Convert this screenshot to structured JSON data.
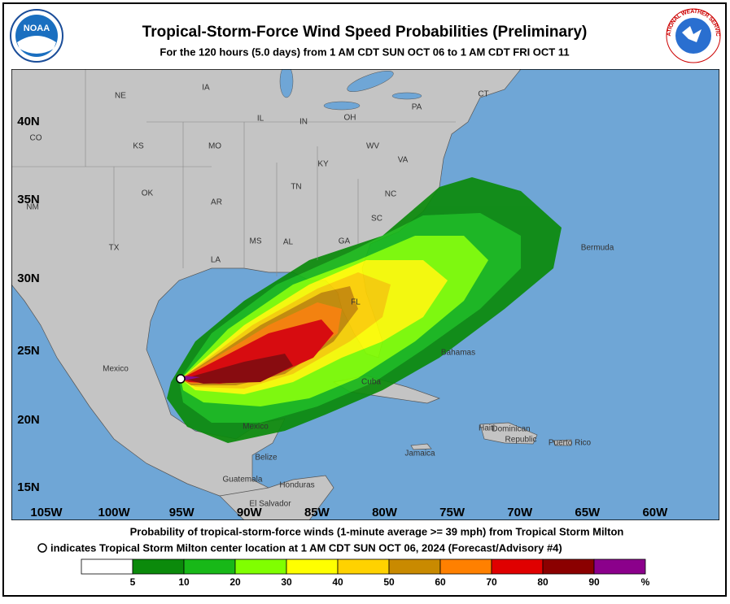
{
  "header": {
    "title": "Tropical-Storm-Force Wind Speed Probabilities (Preliminary)",
    "subtitle": "For the 120 hours (5.0 days) from 1 AM CDT SUN OCT 06 to 1 AM CDT FRI OCT 11",
    "noaa": "NOAA",
    "nws": "NATIONAL WEATHER SERVICE"
  },
  "map": {
    "lat_labels": [
      "40N",
      "35N",
      "30N",
      "25N",
      "20N",
      "15N"
    ],
    "lon_labels": [
      "105W",
      "100W",
      "95W",
      "90W",
      "85W",
      "80W",
      "75W",
      "70W",
      "65W",
      "60W"
    ],
    "place_labels": [
      "NE",
      "IA",
      "IL",
      "IN",
      "OH",
      "PA",
      "CT",
      "KS",
      "MO",
      "KY",
      "WV",
      "VA",
      "CO",
      "OK",
      "AR",
      "TN",
      "NC",
      "SC",
      "NM",
      "TX",
      "MS",
      "AL",
      "GA",
      "LA",
      "FL",
      "Mexico",
      "Bermuda",
      "Bahamas",
      "Cuba",
      "Haiti",
      "Dominican",
      "Republic",
      "Puerto Rico",
      "Jamaica",
      "Mexico",
      "Belize",
      "Guatemala",
      "Honduras",
      "El Salvador"
    ]
  },
  "footer": {
    "line1": "Probability of tropical-storm-force winds (1-minute average >= 39 mph) from Tropical Storm Milton",
    "line2": "indicates Tropical Storm Milton center location at 1 AM CDT SUN OCT 06, 2024 (Forecast/Advisory #4)"
  },
  "legend": {
    "colors": [
      "#ffffff",
      "#0b8a0b",
      "#18b818",
      "#80ff00",
      "#ffff00",
      "#ffd200",
      "#c98a00",
      "#ff8000",
      "#e00000",
      "#8b0000",
      "#8b008b"
    ],
    "labels": [
      5,
      10,
      20,
      30,
      40,
      50,
      60,
      70,
      80,
      90
    ],
    "unit": "%"
  }
}
